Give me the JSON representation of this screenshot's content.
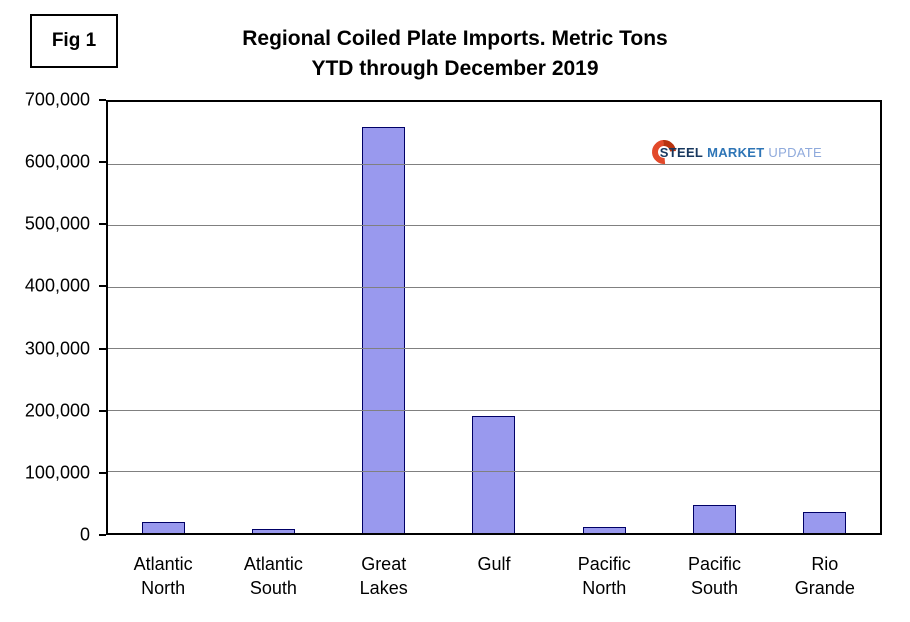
{
  "fig_label": "Fig 1",
  "title_line1": "Regional Coiled Plate Imports. Metric Tons",
  "title_line2": "YTD through December 2019",
  "logo": {
    "steel": "STEEL",
    "market": "MARKET",
    "update": "UPDATE",
    "accent_color": "#e2492a",
    "steel_color": "#17375e",
    "market_color": "#2e75b6",
    "update_color": "#8faadc"
  },
  "colors": {
    "bar_fill": "#9999ee",
    "bar_border": "#000066",
    "gridline": "#808080",
    "plot_border": "#000000"
  },
  "chart_data": {
    "type": "bar",
    "title": "Regional Coiled Plate Imports. Metric Tons YTD through December 2019",
    "categories": [
      "Atlantic\nNorth",
      "Atlantic\nSouth",
      "Great\nLakes",
      "Gulf",
      "Pacific\nNorth",
      "Pacific\nSouth",
      "Rio\nGrande"
    ],
    "values": [
      18000,
      6000,
      660000,
      190000,
      10000,
      46000,
      34000
    ],
    "xlabel": "",
    "ylabel": "",
    "ylim": [
      0,
      700000
    ],
    "ytick_step": 100000,
    "ytick_format": "comma",
    "grid": true,
    "legend": "none"
  }
}
